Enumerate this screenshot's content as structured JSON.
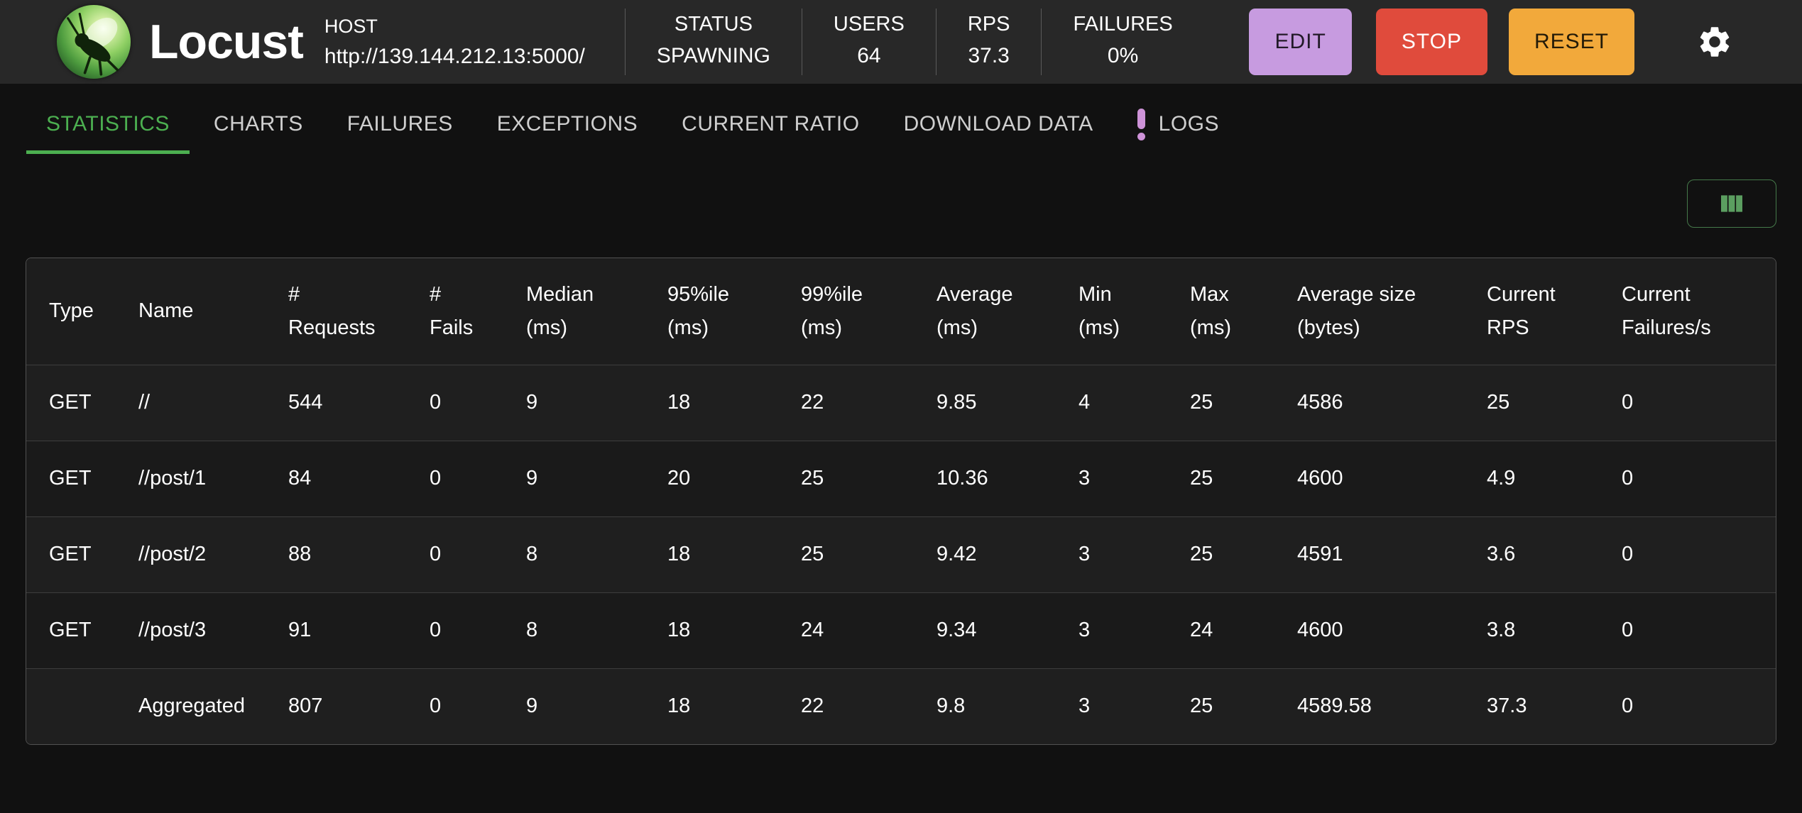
{
  "app": {
    "title": "Locust"
  },
  "header": {
    "host": {
      "label": "HOST",
      "value": "http://139.144.212.13:5000/"
    },
    "stats": [
      {
        "label": "STATUS",
        "value": "SPAWNING"
      },
      {
        "label": "USERS",
        "value": "64"
      },
      {
        "label": "RPS",
        "value": "37.3"
      },
      {
        "label": "FAILURES",
        "value": "0%"
      }
    ],
    "edit_label": "EDIT",
    "stop_label": "STOP",
    "reset_label": "RESET",
    "settings_icon": "gear-icon"
  },
  "tabs": [
    {
      "label": "STATISTICS",
      "active": true,
      "badge": ""
    },
    {
      "label": "CHARTS",
      "active": false,
      "badge": ""
    },
    {
      "label": "FAILURES",
      "active": false,
      "badge": ""
    },
    {
      "label": "EXCEPTIONS",
      "active": false,
      "badge": ""
    },
    {
      "label": "CURRENT RATIO",
      "active": false,
      "badge": ""
    },
    {
      "label": "DOWNLOAD DATA",
      "active": false,
      "badge": ""
    },
    {
      "label": "LOGS",
      "active": false,
      "badge": "!"
    }
  ],
  "toolbar": {
    "column_selector_icon": "columns-icon"
  },
  "colors": {
    "accent_green": "#4caf50",
    "edit_button": "#c79be0",
    "stop_button": "#e04b3c",
    "reset_button": "#f2a93b",
    "logs_badge": "#ce93d8"
  },
  "table": {
    "columns": [
      "Type",
      "Name",
      "#\nRequests",
      "#\nFails",
      "Median\n(ms)",
      "95%ile\n(ms)",
      "99%ile\n(ms)",
      "Average\n(ms)",
      "Min\n(ms)",
      "Max\n(ms)",
      "Average size\n(bytes)",
      "Current\nRPS",
      "Current\nFailures/s"
    ],
    "column_names": [
      "type",
      "name",
      "requests",
      "fails",
      "median",
      "p95",
      "p99",
      "average",
      "min",
      "max",
      "avg-size",
      "current-rps",
      "current-failures"
    ],
    "rows": [
      [
        "GET",
        "//",
        "544",
        "0",
        "9",
        "18",
        "22",
        "9.85",
        "4",
        "25",
        "4586",
        "25",
        "0"
      ],
      [
        "GET",
        "//post/1",
        "84",
        "0",
        "9",
        "20",
        "25",
        "10.36",
        "3",
        "25",
        "4600",
        "4.9",
        "0"
      ],
      [
        "GET",
        "//post/2",
        "88",
        "0",
        "8",
        "18",
        "25",
        "9.42",
        "3",
        "25",
        "4591",
        "3.6",
        "0"
      ],
      [
        "GET",
        "//post/3",
        "91",
        "0",
        "8",
        "18",
        "24",
        "9.34",
        "3",
        "24",
        "4600",
        "3.8",
        "0"
      ],
      [
        "",
        "Aggregated",
        "807",
        "0",
        "9",
        "18",
        "22",
        "9.8",
        "3",
        "25",
        "4589.58",
        "37.3",
        "0"
      ]
    ]
  }
}
